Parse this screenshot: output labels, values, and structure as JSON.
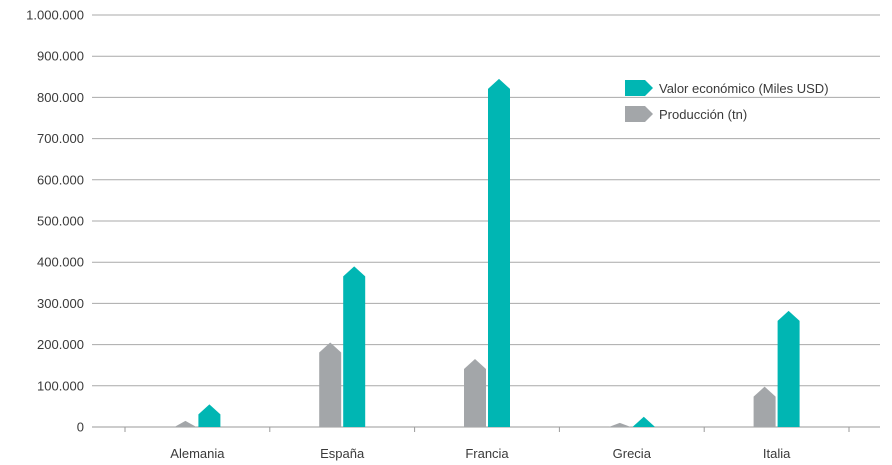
{
  "chart_data": {
    "type": "bar",
    "categories": [
      "Alemania",
      "España",
      "Francia",
      "Grecia",
      "Italia"
    ],
    "series": [
      {
        "name": "Producción (tn)",
        "color": "#a3a6a9",
        "values": [
          15000,
          205000,
          165000,
          10000,
          98000
        ]
      },
      {
        "name": "Valor económico (Miles USD)",
        "color": "#00b6b3",
        "values": [
          55000,
          390000,
          845000,
          25000,
          282000
        ]
      }
    ],
    "yticks": [
      "0",
      "100.000",
      "200.000",
      "300.000",
      "400.000",
      "500.000",
      "600.000",
      "700.000",
      "800.000",
      "900.000",
      "1.000.000"
    ],
    "ylim": [
      0,
      1000000
    ],
    "grid": true,
    "legend": {
      "position": "top-right",
      "entries": [
        "Valor económico (Miles USD)",
        "Producción (tn)"
      ]
    },
    "title": "",
    "xlabel": "",
    "ylabel": ""
  }
}
